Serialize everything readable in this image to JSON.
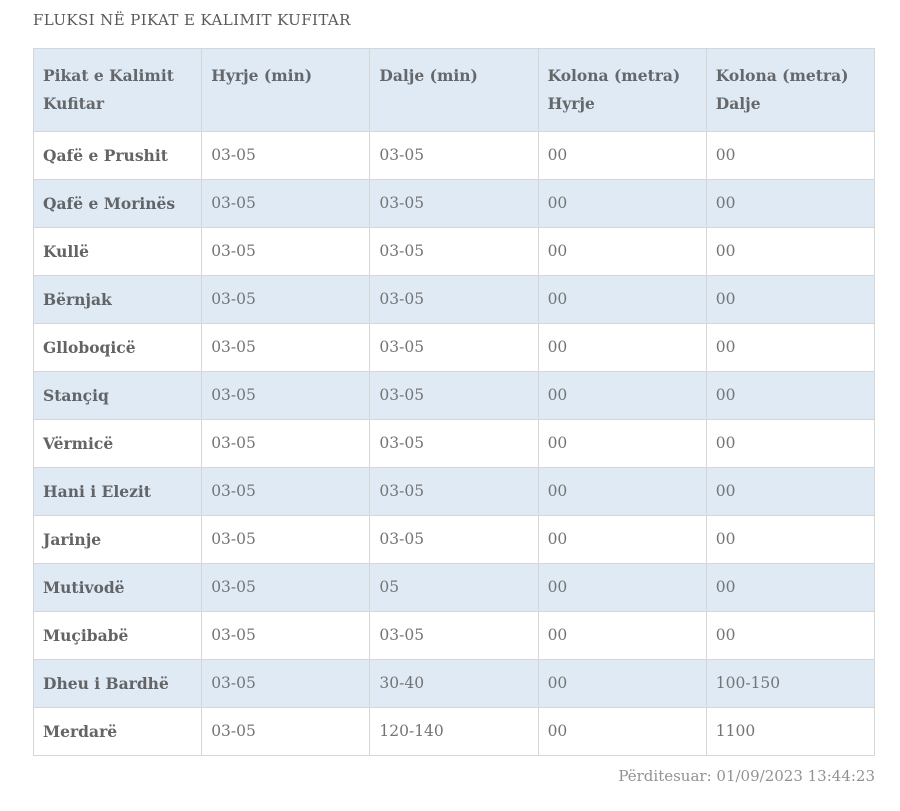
{
  "page": {
    "title": "FLUKSI NË PIKAT E KALIMIT KUFITAR",
    "updated": "Përditesuar: 01/09/2023 13:44:23"
  },
  "colors": {
    "header_bg": "#dfeaf4",
    "row_alt_bg": "#dfeaf4",
    "row_bg": "#ffffff",
    "border": "#d4d7d9",
    "title_text": "#58595b",
    "header_text": "#65676a",
    "name_text": "#626466",
    "value_text": "#737578",
    "updated_text": "#909295"
  },
  "table": {
    "columns": [
      "Pikat e Kalimit Kufitar",
      "Hyrje (min)",
      "Dalje (min)",
      "Kolona (metra) Hyrje",
      "Kolona (metra) Dalje"
    ],
    "rows": [
      [
        "Qafë e Prushit",
        "03-05",
        "03-05",
        "00",
        "00"
      ],
      [
        "Qafë e Morinës",
        "03-05",
        "03-05",
        "00",
        "00"
      ],
      [
        "Kullë",
        "03-05",
        "03-05",
        "00",
        "00"
      ],
      [
        "Bërnjak",
        "03-05",
        "03-05",
        "00",
        "00"
      ],
      [
        "Glloboqicë",
        "03-05",
        "03-05",
        "00",
        "00"
      ],
      [
        "Stançiq",
        "03-05",
        "03-05",
        "00",
        "00"
      ],
      [
        "Vërmicë",
        "03-05",
        "03-05",
        "00",
        "00"
      ],
      [
        "Hani i Elezit",
        "03-05",
        "03-05",
        "00",
        "00"
      ],
      [
        "Jarinje",
        "03-05",
        "03-05",
        "00",
        "00"
      ],
      [
        "Mutivodë",
        "03-05",
        "05",
        "00",
        "00"
      ],
      [
        "Muçibabë",
        "03-05",
        "03-05",
        "00",
        "00"
      ],
      [
        "Dheu i Bardhë",
        "03-05",
        "30-40",
        "00",
        "100-150"
      ],
      [
        "Merdarë",
        "03-05",
        "120-140",
        "00",
        "1100"
      ]
    ]
  }
}
